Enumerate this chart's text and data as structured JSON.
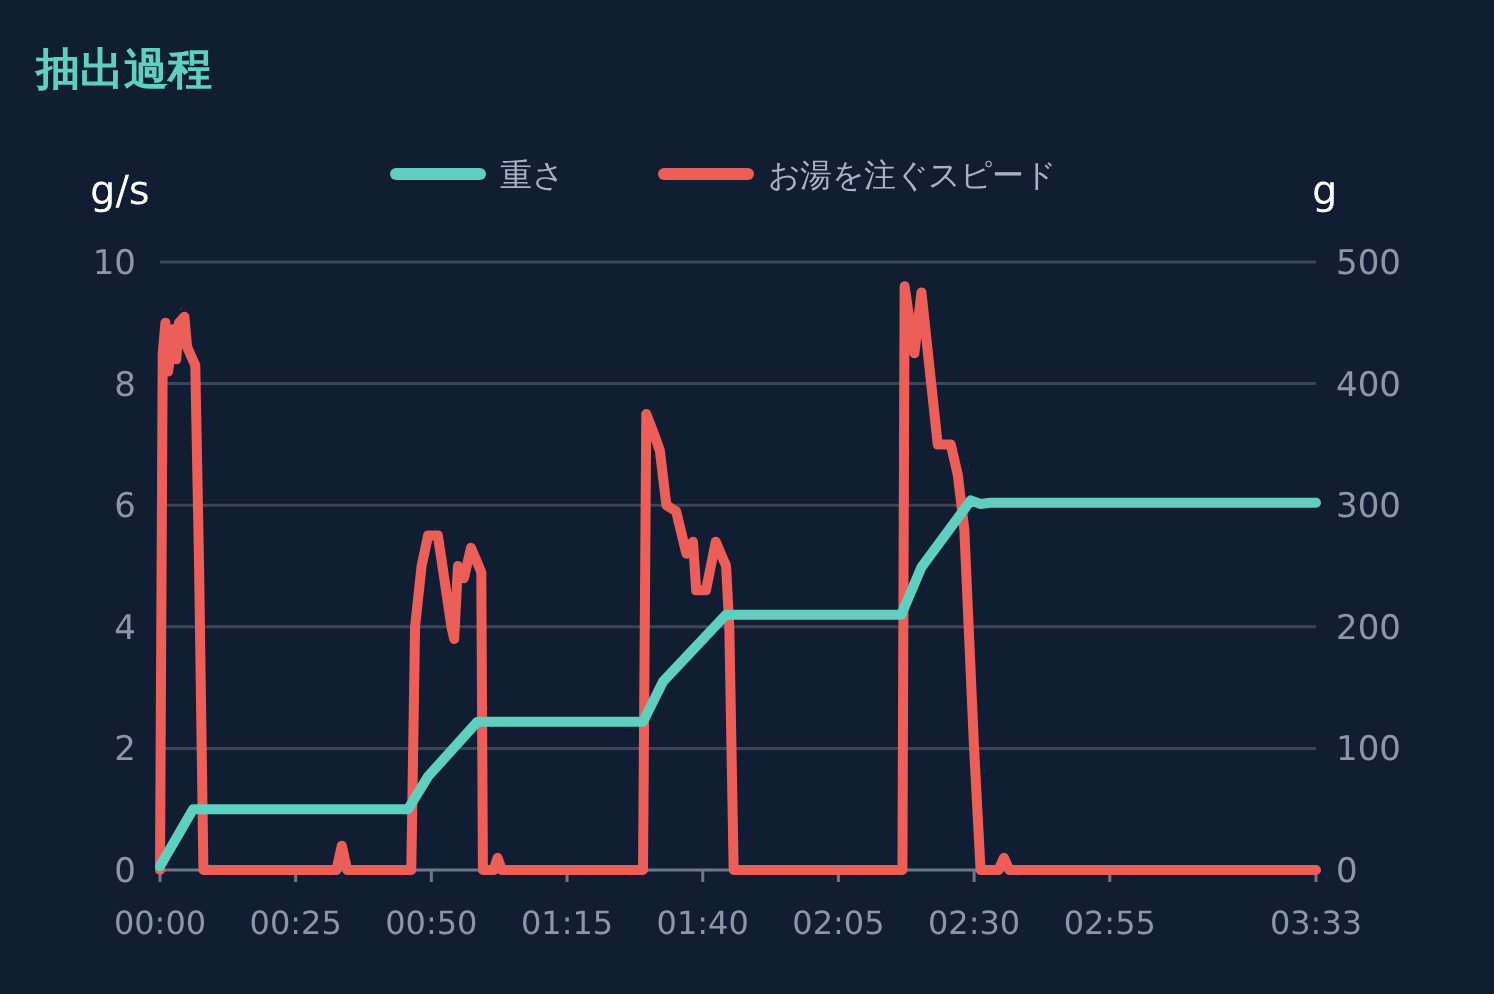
{
  "chart_data": {
    "type": "line",
    "title": "抽出過程",
    "ylabel": "g/s",
    "y2label": "g",
    "legend": "top",
    "grid": "y",
    "xlim": [
      0,
      213
    ],
    "xticks": [
      {
        "value": 0,
        "label": "00:00"
      },
      {
        "value": 25,
        "label": "00:25"
      },
      {
        "value": 50,
        "label": "00:50"
      },
      {
        "value": 75,
        "label": "01:15"
      },
      {
        "value": 100,
        "label": "01:40"
      },
      {
        "value": 125,
        "label": "02:05"
      },
      {
        "value": 150,
        "label": "02:30"
      },
      {
        "value": 175,
        "label": "02:55"
      },
      {
        "value": 213,
        "label": "03:33"
      }
    ],
    "ylim": [
      0,
      10
    ],
    "yticks": [
      0,
      2,
      4,
      6,
      8,
      10
    ],
    "y2lim": [
      0,
      500
    ],
    "y2ticks": [
      0,
      100,
      200,
      300,
      400,
      500
    ],
    "series": [
      {
        "name": "重さ",
        "color": "#5fcfbf",
        "axis": "y2",
        "x": [
          0,
          6.1,
          45.7,
          49.4,
          58.5,
          89,
          92.7,
          104.3,
          136.6,
          140.3,
          149.4,
          151.2,
          153,
          213
        ],
        "values": [
          3,
          50,
          50,
          77,
          122,
          122,
          155,
          210,
          210,
          249,
          304,
          301,
          302,
          302
        ]
      },
      {
        "name": "お湯を注ぐスピード",
        "color": "#ec5f59",
        "axis": "y",
        "x": [
          0,
          0.5,
          1,
          1.5,
          2.5,
          3,
          3.5,
          4.5,
          5,
          6,
          6.5,
          7.2,
          8,
          32.5,
          33.5,
          34.5,
          46.3,
          47,
          48.2,
          49.4,
          51.2,
          53.7,
          54.2,
          54.9,
          56,
          57.3,
          59.2,
          59.5,
          61.5,
          62.2,
          63,
          89,
          89.6,
          90.9,
          92.1,
          93.3,
          95.1,
          97,
          98.2,
          98.8,
          100.6,
          102.4,
          104.3,
          104.9,
          105.7,
          136.8,
          137.2,
          139,
          140.3,
          142.1,
          143.3,
          145.7,
          147,
          148.2,
          150,
          151.2,
          154.5,
          155.5,
          156.5,
          213
        ],
        "values": [
          0,
          8.5,
          9.0,
          8.2,
          8.9,
          8.4,
          9.0,
          9.1,
          8.6,
          8.4,
          8.3,
          5,
          0,
          0,
          0.4,
          0,
          0,
          4.0,
          5.0,
          5.5,
          5.5,
          4.0,
          3.8,
          5.0,
          4.8,
          5.3,
          4.9,
          0,
          0,
          0.2,
          0,
          0,
          7.5,
          7.2,
          6.9,
          6.0,
          5.9,
          5.2,
          5.4,
          4.6,
          4.6,
          5.4,
          5.0,
          4.0,
          0,
          0,
          9.6,
          8.5,
          9.5,
          8.0,
          7.0,
          7.0,
          6.5,
          5.6,
          2,
          0,
          0,
          0.2,
          0,
          0
        ]
      }
    ]
  }
}
